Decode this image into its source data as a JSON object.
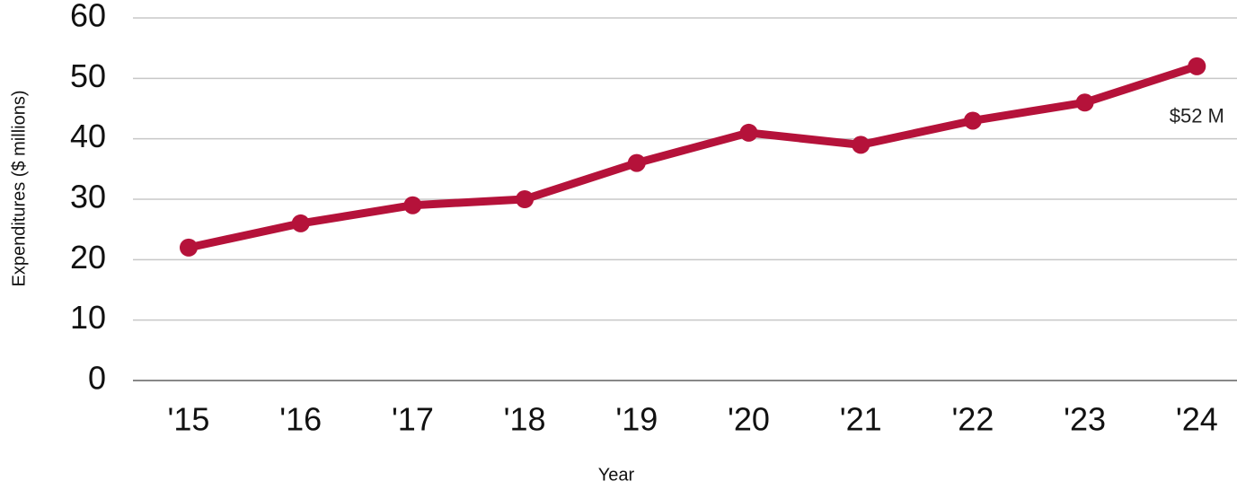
{
  "chart_data": {
    "type": "line",
    "x_label": "Year",
    "y_label": "Expenditures ($ millions)",
    "categories": [
      "'15",
      "'16",
      "'17",
      "'18",
      "'19",
      "'20",
      "'21",
      "'22",
      "'23",
      "'24"
    ],
    "values": [
      22,
      26,
      29,
      30,
      36,
      41,
      39,
      43,
      46,
      52
    ],
    "value_labels": [
      null,
      null,
      null,
      null,
      null,
      null,
      null,
      null,
      null,
      "$52 M"
    ],
    "color": "#b5123a",
    "ylim": [
      0,
      60
    ],
    "yticks": [
      0,
      10,
      20,
      30,
      40,
      50,
      60
    ],
    "grid": true
  }
}
